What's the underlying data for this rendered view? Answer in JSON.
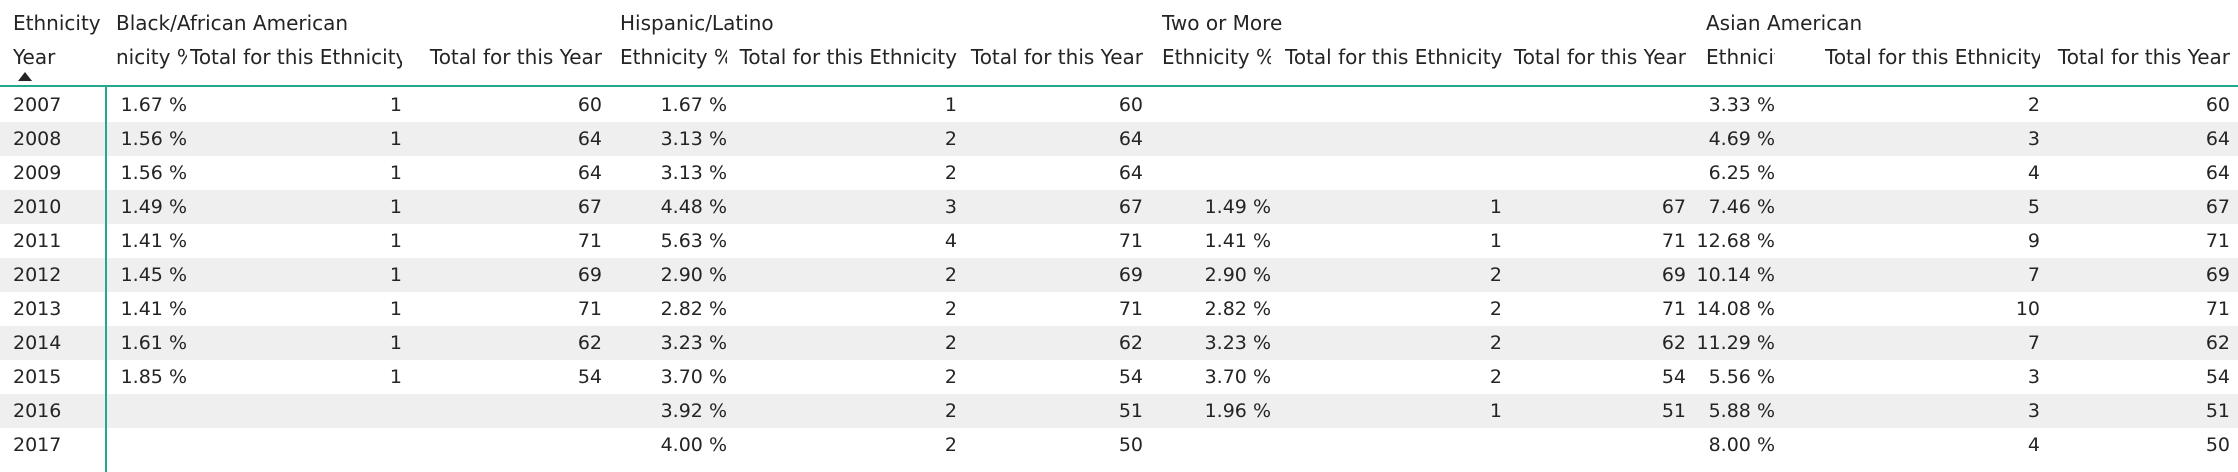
{
  "corner": {
    "top": "Ethnicity",
    "bottom": "Year"
  },
  "groups": [
    "Black/African American",
    "Hispanic/Latino",
    "Two or More",
    "Asian American"
  ],
  "columns": [
    "Ethnicity %",
    "Total for this Ethnicity",
    "Total for this Year"
  ],
  "first_column_visible_text": "nicity %",
  "rows": [
    {
      "year": "2007",
      "cells": [
        [
          "1.67 %",
          "1",
          "60"
        ],
        [
          "1.67 %",
          "1",
          "60"
        ],
        [
          "",
          "",
          ""
        ],
        [
          "3.33 %",
          "2",
          "60"
        ]
      ]
    },
    {
      "year": "2008",
      "cells": [
        [
          "1.56 %",
          "1",
          "64"
        ],
        [
          "3.13 %",
          "2",
          "64"
        ],
        [
          "",
          "",
          ""
        ],
        [
          "4.69 %",
          "3",
          "64"
        ]
      ]
    },
    {
      "year": "2009",
      "cells": [
        [
          "1.56 %",
          "1",
          "64"
        ],
        [
          "3.13 %",
          "2",
          "64"
        ],
        [
          "",
          "",
          ""
        ],
        [
          "6.25 %",
          "4",
          "64"
        ]
      ]
    },
    {
      "year": "2010",
      "cells": [
        [
          "1.49 %",
          "1",
          "67"
        ],
        [
          "4.48 %",
          "3",
          "67"
        ],
        [
          "1.49 %",
          "1",
          "67"
        ],
        [
          "7.46 %",
          "5",
          "67"
        ]
      ]
    },
    {
      "year": "2011",
      "cells": [
        [
          "1.41 %",
          "1",
          "71"
        ],
        [
          "5.63 %",
          "4",
          "71"
        ],
        [
          "1.41 %",
          "1",
          "71"
        ],
        [
          "12.68 %",
          "9",
          "71"
        ]
      ]
    },
    {
      "year": "2012",
      "cells": [
        [
          "1.45 %",
          "1",
          "69"
        ],
        [
          "2.90 %",
          "2",
          "69"
        ],
        [
          "2.90 %",
          "2",
          "69"
        ],
        [
          "10.14 %",
          "7",
          "69"
        ]
      ]
    },
    {
      "year": "2013",
      "cells": [
        [
          "1.41 %",
          "1",
          "71"
        ],
        [
          "2.82 %",
          "2",
          "71"
        ],
        [
          "2.82 %",
          "2",
          "71"
        ],
        [
          "14.08 %",
          "10",
          "71"
        ]
      ]
    },
    {
      "year": "2014",
      "cells": [
        [
          "1.61 %",
          "1",
          "62"
        ],
        [
          "3.23 %",
          "2",
          "62"
        ],
        [
          "3.23 %",
          "2",
          "62"
        ],
        [
          "11.29 %",
          "7",
          "62"
        ]
      ]
    },
    {
      "year": "2015",
      "cells": [
        [
          "1.85 %",
          "1",
          "54"
        ],
        [
          "3.70 %",
          "2",
          "54"
        ],
        [
          "3.70 %",
          "2",
          "54"
        ],
        [
          "5.56 %",
          "3",
          "54"
        ]
      ]
    },
    {
      "year": "2016",
      "cells": [
        [
          "",
          "",
          ""
        ],
        [
          "3.92 %",
          "2",
          "51"
        ],
        [
          "1.96 %",
          "1",
          "51"
        ],
        [
          "5.88 %",
          "3",
          "51"
        ]
      ]
    },
    {
      "year": "2017",
      "cells": [
        [
          "",
          "",
          ""
        ],
        [
          "4.00 %",
          "2",
          "50"
        ],
        [
          "",
          "",
          ""
        ],
        [
          "8.00 %",
          "4",
          "50"
        ]
      ]
    }
  ],
  "colors": {
    "accent": "#21a88f",
    "band": "#efefef",
    "text": "#252423"
  },
  "icons": {
    "sort": "sort-ascending-icon"
  }
}
